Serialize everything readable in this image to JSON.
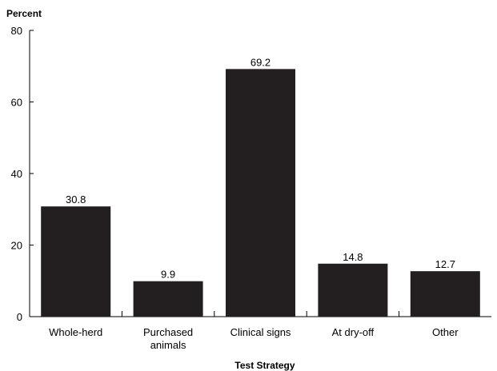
{
  "chart_data": {
    "type": "bar",
    "title": "",
    "ylabel": "Percent",
    "xlabel": "Test Strategy",
    "categories": [
      [
        "Whole-herd"
      ],
      [
        "Purchased",
        "animals"
      ],
      [
        "Clinical signs"
      ],
      [
        "At dry-off"
      ],
      [
        "Other"
      ]
    ],
    "values": [
      30.8,
      9.9,
      69.2,
      14.8,
      12.7
    ],
    "value_labels": [
      "30.8",
      "9.9",
      "69.2",
      "14.8",
      "12.7"
    ],
    "ylim": [
      0,
      80
    ],
    "yticks": [
      0,
      20,
      40,
      60,
      80
    ],
    "grid": false,
    "legend": "none",
    "colors": {
      "bar": "#231f20",
      "axis": "#000000"
    }
  }
}
